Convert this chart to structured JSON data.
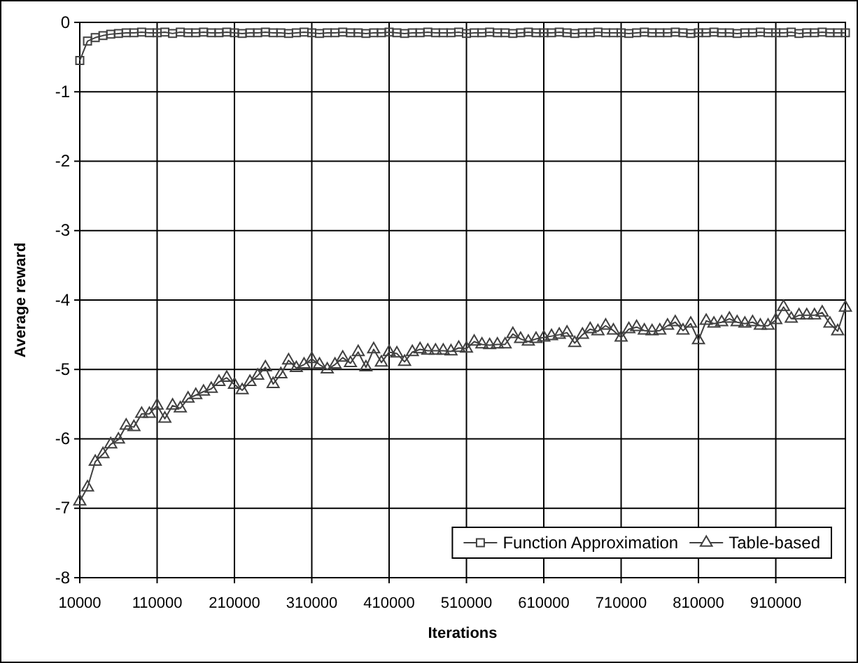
{
  "chart_data": {
    "type": "line",
    "xlabel": "Iterations",
    "ylabel": "Average reward",
    "x": [
      10000,
      20000,
      30000,
      40000,
      50000,
      60000,
      70000,
      80000,
      90000,
      100000,
      110000,
      120000,
      130000,
      140000,
      150000,
      160000,
      170000,
      180000,
      190000,
      200000,
      210000,
      220000,
      230000,
      240000,
      250000,
      260000,
      270000,
      280000,
      290000,
      300000,
      310000,
      320000,
      330000,
      340000,
      350000,
      360000,
      370000,
      380000,
      390000,
      400000,
      410000,
      420000,
      430000,
      440000,
      450000,
      460000,
      470000,
      480000,
      490000,
      500000,
      510000,
      520000,
      530000,
      540000,
      550000,
      560000,
      570000,
      580000,
      590000,
      600000,
      610000,
      620000,
      630000,
      640000,
      650000,
      660000,
      670000,
      680000,
      690000,
      700000,
      710000,
      720000,
      730000,
      740000,
      750000,
      760000,
      770000,
      780000,
      790000,
      800000,
      810000,
      820000,
      830000,
      840000,
      850000,
      860000,
      870000,
      880000,
      890000,
      900000,
      910000,
      920000,
      930000,
      940000,
      950000,
      960000,
      970000,
      980000,
      990000,
      1000000
    ],
    "xlim": [
      10000,
      1000000
    ],
    "xticks": [
      10000,
      110000,
      210000,
      310000,
      410000,
      510000,
      610000,
      710000,
      810000,
      910000
    ],
    "ylim": [
      -8,
      0
    ],
    "yticks": [
      -8,
      -7,
      -6,
      -5,
      -4,
      -3,
      -2,
      -1,
      0
    ],
    "grid": true,
    "legend": "bottom right",
    "line_style": "solid",
    "series": [
      {
        "name": "Function Approximation",
        "color": "#404040",
        "marker": "square",
        "values": [
          -0.55,
          -0.27,
          -0.22,
          -0.19,
          -0.17,
          -0.16,
          -0.15,
          -0.15,
          -0.14,
          -0.15,
          -0.15,
          -0.14,
          -0.16,
          -0.14,
          -0.15,
          -0.15,
          -0.14,
          -0.15,
          -0.15,
          -0.14,
          -0.15,
          -0.16,
          -0.15,
          -0.15,
          -0.14,
          -0.15,
          -0.15,
          -0.16,
          -0.15,
          -0.14,
          -0.15,
          -0.16,
          -0.15,
          -0.15,
          -0.14,
          -0.15,
          -0.15,
          -0.16,
          -0.15,
          -0.15,
          -0.14,
          -0.15,
          -0.16,
          -0.15,
          -0.15,
          -0.14,
          -0.15,
          -0.15,
          -0.15,
          -0.14,
          -0.16,
          -0.15,
          -0.15,
          -0.14,
          -0.15,
          -0.15,
          -0.16,
          -0.15,
          -0.14,
          -0.15,
          -0.15,
          -0.15,
          -0.14,
          -0.15,
          -0.16,
          -0.15,
          -0.15,
          -0.14,
          -0.15,
          -0.15,
          -0.15,
          -0.16,
          -0.15,
          -0.14,
          -0.15,
          -0.15,
          -0.15,
          -0.14,
          -0.15,
          -0.16,
          -0.15,
          -0.15,
          -0.14,
          -0.15,
          -0.15,
          -0.16,
          -0.15,
          -0.15,
          -0.14,
          -0.15,
          -0.15,
          -0.15,
          -0.14,
          -0.16,
          -0.15,
          -0.15,
          -0.14,
          -0.15,
          -0.15,
          -0.15
        ]
      },
      {
        "name": "Table-based",
        "color": "#404040",
        "marker": "triangle",
        "values": [
          -6.9,
          -6.7,
          -6.33,
          -6.22,
          -6.08,
          -6.01,
          -5.81,
          -5.83,
          -5.64,
          -5.64,
          -5.52,
          -5.71,
          -5.52,
          -5.56,
          -5.42,
          -5.37,
          -5.32,
          -5.28,
          -5.18,
          -5.12,
          -5.22,
          -5.3,
          -5.18,
          -5.09,
          -4.97,
          -5.21,
          -5.07,
          -4.87,
          -4.98,
          -4.93,
          -4.85,
          -4.93,
          -5.0,
          -4.93,
          -4.83,
          -4.91,
          -4.75,
          -4.97,
          -4.71,
          -4.9,
          -4.75,
          -4.77,
          -4.89,
          -4.75,
          -4.71,
          -4.73,
          -4.73,
          -4.73,
          -4.74,
          -4.69,
          -4.7,
          -4.6,
          -4.64,
          -4.65,
          -4.64,
          -4.64,
          -4.49,
          -4.56,
          -4.6,
          -4.56,
          -4.54,
          -4.52,
          -4.5,
          -4.47,
          -4.62,
          -4.5,
          -4.42,
          -4.45,
          -4.37,
          -4.44,
          -4.54,
          -4.42,
          -4.39,
          -4.44,
          -4.45,
          -4.44,
          -4.37,
          -4.32,
          -4.44,
          -4.34,
          -4.58,
          -4.3,
          -4.34,
          -4.32,
          -4.27,
          -4.32,
          -4.34,
          -4.32,
          -4.37,
          -4.37,
          -4.29,
          -4.1,
          -4.27,
          -4.22,
          -4.22,
          -4.22,
          -4.18,
          -4.34,
          -4.45,
          -4.11
        ]
      }
    ]
  }
}
